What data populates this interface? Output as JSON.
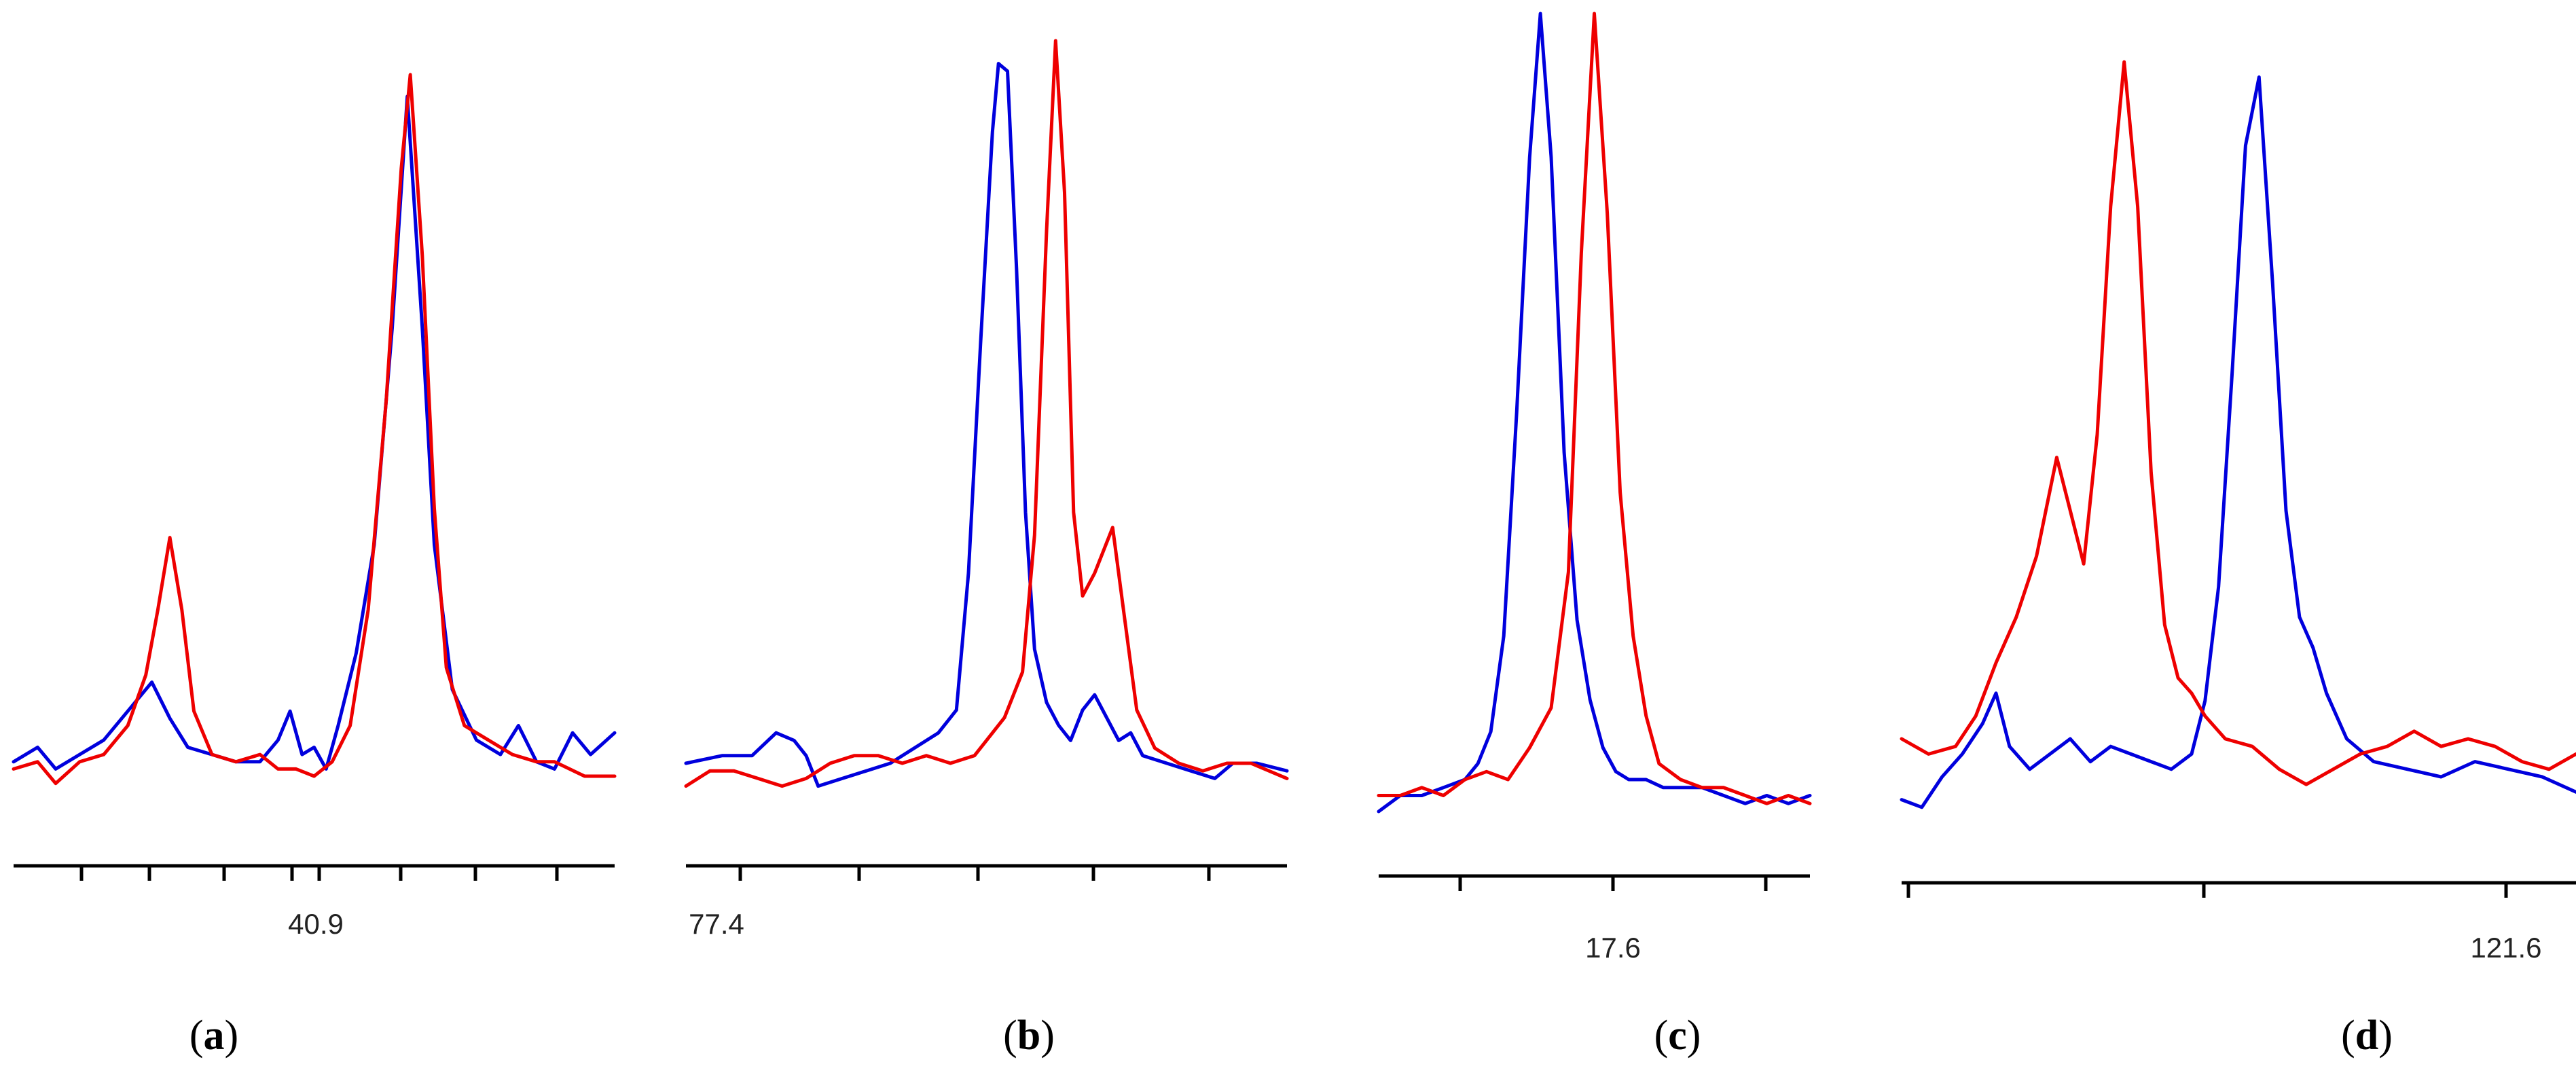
{
  "colors": {
    "blue": "#0000dd",
    "red": "#ee0000"
  },
  "chart_data": [
    {
      "type": "line",
      "panel_label": "a",
      "tick_label": "40.9",
      "series": [
        {
          "color": "blue",
          "points": [
            [
              0,
              0.05
            ],
            [
              0.04,
              0.07
            ],
            [
              0.07,
              0.04
            ],
            [
              0.11,
              0.06
            ],
            [
              0.15,
              0.08
            ],
            [
              0.19,
              0.12
            ],
            [
              0.23,
              0.16
            ],
            [
              0.26,
              0.11
            ],
            [
              0.29,
              0.07
            ],
            [
              0.33,
              0.06
            ],
            [
              0.37,
              0.05
            ],
            [
              0.41,
              0.05
            ],
            [
              0.44,
              0.08
            ],
            [
              0.46,
              0.12
            ],
            [
              0.48,
              0.06
            ],
            [
              0.5,
              0.07
            ],
            [
              0.52,
              0.04
            ],
            [
              0.54,
              0.1
            ],
            [
              0.57,
              0.2
            ],
            [
              0.6,
              0.35
            ],
            [
              0.63,
              0.65
            ],
            [
              0.655,
              0.97
            ],
            [
              0.68,
              0.65
            ],
            [
              0.7,
              0.35
            ],
            [
              0.73,
              0.15
            ],
            [
              0.77,
              0.08
            ],
            [
              0.81,
              0.06
            ],
            [
              0.84,
              0.1
            ],
            [
              0.87,
              0.05
            ],
            [
              0.9,
              0.04
            ],
            [
              0.93,
              0.09
            ],
            [
              0.96,
              0.06
            ],
            [
              1,
              0.09
            ]
          ]
        },
        {
          "color": "red",
          "points": [
            [
              0,
              0.04
            ],
            [
              0.04,
              0.05
            ],
            [
              0.07,
              0.02
            ],
            [
              0.11,
              0.05
            ],
            [
              0.15,
              0.06
            ],
            [
              0.19,
              0.1
            ],
            [
              0.22,
              0.17
            ],
            [
              0.24,
              0.26
            ],
            [
              0.26,
              0.36
            ],
            [
              0.28,
              0.26
            ],
            [
              0.3,
              0.12
            ],
            [
              0.33,
              0.06
            ],
            [
              0.37,
              0.05
            ],
            [
              0.41,
              0.06
            ],
            [
              0.44,
              0.04
            ],
            [
              0.47,
              0.04
            ],
            [
              0.5,
              0.03
            ],
            [
              0.53,
              0.05
            ],
            [
              0.56,
              0.1
            ],
            [
              0.59,
              0.26
            ],
            [
              0.62,
              0.55
            ],
            [
              0.645,
              0.87
            ],
            [
              0.66,
              1.0
            ],
            [
              0.68,
              0.75
            ],
            [
              0.7,
              0.4
            ],
            [
              0.72,
              0.18
            ],
            [
              0.75,
              0.1
            ],
            [
              0.79,
              0.08
            ],
            [
              0.83,
              0.06
            ],
            [
              0.87,
              0.05
            ],
            [
              0.9,
              0.05
            ],
            [
              0.95,
              0.03
            ],
            [
              1,
              0.03
            ]
          ]
        }
      ]
    },
    {
      "type": "line",
      "panel_label": "b",
      "tick_label": "77.4",
      "series": [
        {
          "color": "blue",
          "points": [
            [
              0,
              0.05
            ],
            [
              0.06,
              0.06
            ],
            [
              0.11,
              0.06
            ],
            [
              0.15,
              0.09
            ],
            [
              0.18,
              0.08
            ],
            [
              0.2,
              0.06
            ],
            [
              0.22,
              0.02
            ],
            [
              0.26,
              0.03
            ],
            [
              0.3,
              0.04
            ],
            [
              0.34,
              0.05
            ],
            [
              0.38,
              0.07
            ],
            [
              0.42,
              0.09
            ],
            [
              0.45,
              0.12
            ],
            [
              0.47,
              0.3
            ],
            [
              0.49,
              0.6
            ],
            [
              0.51,
              0.88
            ],
            [
              0.52,
              0.97
            ],
            [
              0.535,
              0.96
            ],
            [
              0.55,
              0.7
            ],
            [
              0.565,
              0.38
            ],
            [
              0.58,
              0.2
            ],
            [
              0.6,
              0.13
            ],
            [
              0.62,
              0.1
            ],
            [
              0.64,
              0.08
            ],
            [
              0.66,
              0.12
            ],
            [
              0.68,
              0.14
            ],
            [
              0.7,
              0.11
            ],
            [
              0.72,
              0.08
            ],
            [
              0.74,
              0.09
            ],
            [
              0.76,
              0.06
            ],
            [
              0.8,
              0.05
            ],
            [
              0.84,
              0.04
            ],
            [
              0.88,
              0.03
            ],
            [
              0.91,
              0.05
            ],
            [
              0.95,
              0.05
            ],
            [
              1,
              0.04
            ]
          ]
        },
        {
          "color": "red",
          "points": [
            [
              0,
              0.02
            ],
            [
              0.04,
              0.04
            ],
            [
              0.08,
              0.04
            ],
            [
              0.12,
              0.03
            ],
            [
              0.16,
              0.02
            ],
            [
              0.2,
              0.03
            ],
            [
              0.24,
              0.05
            ],
            [
              0.28,
              0.06
            ],
            [
              0.32,
              0.06
            ],
            [
              0.36,
              0.05
            ],
            [
              0.4,
              0.06
            ],
            [
              0.44,
              0.05
            ],
            [
              0.48,
              0.06
            ],
            [
              0.5,
              0.08
            ],
            [
              0.53,
              0.11
            ],
            [
              0.56,
              0.17
            ],
            [
              0.58,
              0.35
            ],
            [
              0.6,
              0.75
            ],
            [
              0.615,
              1.0
            ],
            [
              0.63,
              0.8
            ],
            [
              0.645,
              0.38
            ],
            [
              0.66,
              0.27
            ],
            [
              0.68,
              0.3
            ],
            [
              0.71,
              0.36
            ],
            [
              0.73,
              0.24
            ],
            [
              0.75,
              0.12
            ],
            [
              0.78,
              0.07
            ],
            [
              0.82,
              0.05
            ],
            [
              0.86,
              0.04
            ],
            [
              0.9,
              0.05
            ],
            [
              0.94,
              0.05
            ],
            [
              1,
              0.03
            ]
          ]
        }
      ]
    },
    {
      "type": "line",
      "panel_label": "c",
      "tick_label": "17.6",
      "series": [
        {
          "color": "blue",
          "points": [
            [
              0,
              0.0
            ],
            [
              0.05,
              0.02
            ],
            [
              0.1,
              0.02
            ],
            [
              0.15,
              0.03
            ],
            [
              0.2,
              0.04
            ],
            [
              0.23,
              0.06
            ],
            [
              0.26,
              0.1
            ],
            [
              0.29,
              0.22
            ],
            [
              0.32,
              0.5
            ],
            [
              0.35,
              0.82
            ],
            [
              0.375,
              1.0
            ],
            [
              0.4,
              0.82
            ],
            [
              0.43,
              0.45
            ],
            [
              0.46,
              0.24
            ],
            [
              0.49,
              0.14
            ],
            [
              0.52,
              0.08
            ],
            [
              0.55,
              0.05
            ],
            [
              0.58,
              0.04
            ],
            [
              0.62,
              0.04
            ],
            [
              0.66,
              0.03
            ],
            [
              0.7,
              0.03
            ],
            [
              0.75,
              0.03
            ],
            [
              0.8,
              0.02
            ],
            [
              0.85,
              0.01
            ],
            [
              0.9,
              0.02
            ],
            [
              0.95,
              0.01
            ],
            [
              1,
              0.02
            ]
          ]
        },
        {
          "color": "red",
          "points": [
            [
              0,
              0.02
            ],
            [
              0.05,
              0.02
            ],
            [
              0.1,
              0.03
            ],
            [
              0.15,
              0.02
            ],
            [
              0.2,
              0.04
            ],
            [
              0.25,
              0.05
            ],
            [
              0.3,
              0.04
            ],
            [
              0.35,
              0.08
            ],
            [
              0.4,
              0.13
            ],
            [
              0.44,
              0.3
            ],
            [
              0.47,
              0.7
            ],
            [
              0.5,
              1.0
            ],
            [
              0.53,
              0.75
            ],
            [
              0.56,
              0.4
            ],
            [
              0.59,
              0.22
            ],
            [
              0.62,
              0.12
            ],
            [
              0.65,
              0.06
            ],
            [
              0.7,
              0.04
            ],
            [
              0.75,
              0.03
            ],
            [
              0.8,
              0.03
            ],
            [
              0.85,
              0.02
            ],
            [
              0.9,
              0.01
            ],
            [
              0.95,
              0.02
            ],
            [
              1,
              0.01
            ]
          ]
        }
      ]
    },
    {
      "type": "line",
      "panel_label": "d",
      "tick_label": "121.6",
      "series": [
        {
          "color": "blue",
          "points": [
            [
              0,
              0.02
            ],
            [
              0.03,
              0.01
            ],
            [
              0.06,
              0.05
            ],
            [
              0.09,
              0.08
            ],
            [
              0.12,
              0.12
            ],
            [
              0.14,
              0.16
            ],
            [
              0.16,
              0.09
            ],
            [
              0.19,
              0.06
            ],
            [
              0.22,
              0.08
            ],
            [
              0.25,
              0.1
            ],
            [
              0.28,
              0.07
            ],
            [
              0.31,
              0.09
            ],
            [
              0.34,
              0.08
            ],
            [
              0.37,
              0.07
            ],
            [
              0.4,
              0.06
            ],
            [
              0.43,
              0.08
            ],
            [
              0.45,
              0.15
            ],
            [
              0.47,
              0.3
            ],
            [
              0.49,
              0.58
            ],
            [
              0.51,
              0.88
            ],
            [
              0.53,
              0.97
            ],
            [
              0.55,
              0.7
            ],
            [
              0.57,
              0.4
            ],
            [
              0.59,
              0.26
            ],
            [
              0.61,
              0.22
            ],
            [
              0.63,
              0.16
            ],
            [
              0.66,
              0.1
            ],
            [
              0.7,
              0.07
            ],
            [
              0.75,
              0.06
            ],
            [
              0.8,
              0.05
            ],
            [
              0.85,
              0.07
            ],
            [
              0.9,
              0.06
            ],
            [
              0.95,
              0.05
            ],
            [
              1,
              0.03
            ]
          ]
        },
        {
          "color": "red",
          "points": [
            [
              0,
              0.1
            ],
            [
              0.04,
              0.08
            ],
            [
              0.08,
              0.09
            ],
            [
              0.11,
              0.13
            ],
            [
              0.14,
              0.2
            ],
            [
              0.17,
              0.26
            ],
            [
              0.2,
              0.34
            ],
            [
              0.23,
              0.47
            ],
            [
              0.25,
              0.4
            ],
            [
              0.27,
              0.33
            ],
            [
              0.29,
              0.5
            ],
            [
              0.31,
              0.8
            ],
            [
              0.33,
              0.99
            ],
            [
              0.35,
              0.8
            ],
            [
              0.37,
              0.45
            ],
            [
              0.39,
              0.25
            ],
            [
              0.41,
              0.18
            ],
            [
              0.43,
              0.16
            ],
            [
              0.45,
              0.13
            ],
            [
              0.48,
              0.1
            ],
            [
              0.52,
              0.09
            ],
            [
              0.56,
              0.06
            ],
            [
              0.6,
              0.04
            ],
            [
              0.64,
              0.06
            ],
            [
              0.68,
              0.08
            ],
            [
              0.72,
              0.09
            ],
            [
              0.76,
              0.11
            ],
            [
              0.8,
              0.09
            ],
            [
              0.84,
              0.1
            ],
            [
              0.88,
              0.09
            ],
            [
              0.92,
              0.07
            ],
            [
              0.96,
              0.06
            ],
            [
              1,
              0.08
            ]
          ]
        }
      ]
    }
  ]
}
